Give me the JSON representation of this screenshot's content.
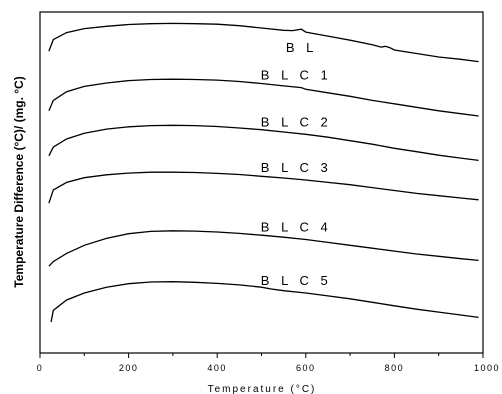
{
  "chart_data": {
    "type": "line",
    "xlabel": "Temperature (°C)",
    "ylabel": "Temperature Difference (°C)/ (mg. °C)",
    "xlim": [
      0,
      1000
    ],
    "x_ticks": [
      "0",
      "200",
      "400",
      "600",
      "800",
      "1000"
    ],
    "grid": false,
    "legend": "none",
    "series": [
      {
        "name": "B L",
        "x": [
          20,
          30,
          60,
          100,
          150,
          200,
          250,
          300,
          350,
          400,
          450,
          500,
          550,
          570,
          590,
          600,
          650,
          700,
          750,
          770,
          780,
          790,
          800,
          850,
          900,
          950,
          990
        ],
        "y": [
          0.6,
          0.8,
          0.92,
          0.99,
          1.03,
          1.06,
          1.075,
          1.08,
          1.075,
          1.065,
          1.04,
          1.0,
          0.96,
          0.955,
          0.98,
          0.93,
          0.86,
          0.79,
          0.71,
          0.67,
          0.685,
          0.66,
          0.62,
          0.56,
          0.5,
          0.46,
          0.42
        ]
      },
      {
        "name": "B L C 1",
        "x": [
          20,
          30,
          60,
          100,
          150,
          200,
          250,
          300,
          350,
          400,
          450,
          500,
          550,
          590,
          600,
          650,
          700,
          750,
          800,
          850,
          900,
          950,
          990
        ],
        "y": [
          0.4,
          0.58,
          0.73,
          0.82,
          0.88,
          0.92,
          0.94,
          0.945,
          0.94,
          0.93,
          0.905,
          0.87,
          0.83,
          0.8,
          0.77,
          0.71,
          0.65,
          0.58,
          0.52,
          0.46,
          0.4,
          0.35,
          0.31
        ]
      },
      {
        "name": "B L C 2",
        "x": [
          20,
          30,
          60,
          100,
          150,
          200,
          250,
          300,
          350,
          400,
          450,
          500,
          550,
          600,
          650,
          700,
          750,
          800,
          850,
          900,
          950,
          990
        ],
        "y": [
          0.4,
          0.55,
          0.69,
          0.79,
          0.86,
          0.9,
          0.92,
          0.925,
          0.92,
          0.905,
          0.88,
          0.85,
          0.81,
          0.77,
          0.72,
          0.66,
          0.6,
          0.53,
          0.47,
          0.41,
          0.36,
          0.32
        ]
      },
      {
        "name": "B L C 3",
        "x": [
          20,
          30,
          60,
          100,
          150,
          200,
          250,
          300,
          350,
          400,
          450,
          500,
          550,
          600,
          650,
          700,
          750,
          800,
          850,
          900,
          950,
          990
        ],
        "y": [
          0.22,
          0.45,
          0.58,
          0.66,
          0.71,
          0.74,
          0.755,
          0.755,
          0.75,
          0.735,
          0.715,
          0.685,
          0.655,
          0.62,
          0.58,
          0.54,
          0.49,
          0.44,
          0.39,
          0.35,
          0.31,
          0.28
        ]
      },
      {
        "name": "B L C 4",
        "x": [
          20,
          30,
          60,
          100,
          150,
          200,
          250,
          300,
          350,
          400,
          450,
          500,
          550,
          600,
          650,
          700,
          750,
          800,
          850,
          900,
          950,
          990
        ],
        "y": [
          0.1,
          0.18,
          0.32,
          0.46,
          0.58,
          0.66,
          0.7,
          0.71,
          0.705,
          0.69,
          0.665,
          0.635,
          0.6,
          0.56,
          0.51,
          0.46,
          0.41,
          0.36,
          0.31,
          0.27,
          0.23,
          0.2
        ]
      },
      {
        "name": "B L C 5",
        "x": [
          25,
          30,
          60,
          100,
          150,
          200,
          250,
          300,
          350,
          400,
          450,
          500,
          520,
          550,
          600,
          650,
          700,
          750,
          800,
          850,
          900,
          950,
          990
        ],
        "y": [
          0.0,
          0.2,
          0.38,
          0.5,
          0.6,
          0.66,
          0.69,
          0.695,
          0.685,
          0.665,
          0.64,
          0.6,
          0.57,
          0.54,
          0.5,
          0.45,
          0.4,
          0.34,
          0.28,
          0.22,
          0.17,
          0.12,
          0.08
        ]
      }
    ]
  }
}
